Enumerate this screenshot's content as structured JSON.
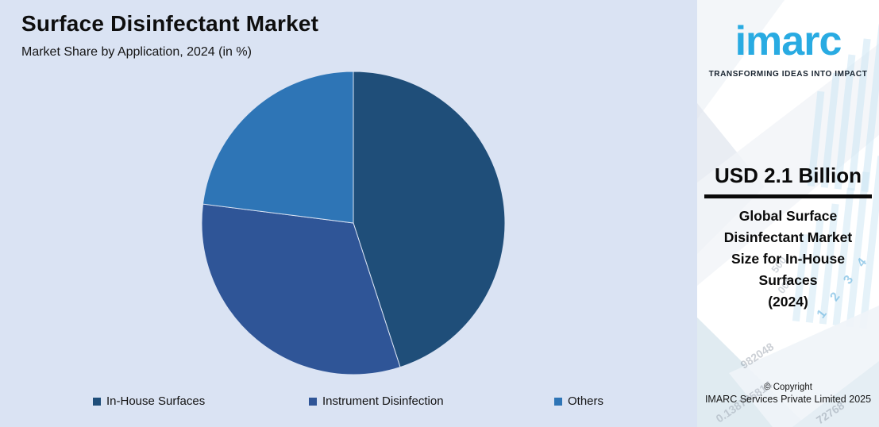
{
  "header": {
    "title": "Surface Disinfectant Market",
    "subtitle": "Market Share by Application, 2024 (in %)"
  },
  "chart_data": {
    "type": "pie",
    "title": "Surface Disinfectant Market - Market Share by Application, 2024 (in %)",
    "categories": [
      "In-House Surfaces",
      "Instrument Disinfection",
      "Others"
    ],
    "values": [
      45,
      32,
      23
    ],
    "unit": "%",
    "colors": [
      "#1f4e79",
      "#2f5597",
      "#2e75b6"
    ],
    "start_angle_deg": 0,
    "direction": "clockwise",
    "legend_position": "bottom",
    "data_labels_shown": false
  },
  "panel": {
    "logo_text": "imarc",
    "logo_color": "#29abe2",
    "tagline": "TRANSFORMING IDEAS INTO IMPACT",
    "stat_value": "USD 2.1 Billion",
    "stat_label_lines": [
      "Global Surface",
      "Disinfectant Market",
      "Size for In-House",
      "Surfaces",
      "(2024)"
    ],
    "copyright_line1": "© Copyright",
    "copyright_line2": "IMARC Services Private Limited 2025",
    "decor_numbers": {
      "diag_digits": "1 2 3 4",
      "n500": "500",
      "n000": "000",
      "n1": "982048",
      "n2": "0.138785814",
      "n3": "72768"
    }
  },
  "colors": {
    "background": "#dae3f3",
    "panel_background": "#ffffff",
    "divider": "#0a0a0a",
    "text": "#141414"
  }
}
